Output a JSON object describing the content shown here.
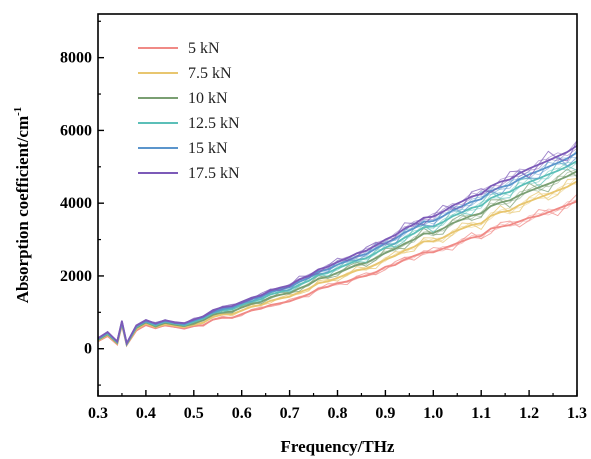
{
  "chart_data": {
    "type": "line",
    "title": "",
    "xlabel": "Frequency/THz",
    "ylabel_base": "Absorption coefficient/cm",
    "ylabel_sup": "-1",
    "xlim": [
      0.3,
      1.3
    ],
    "ylim": [
      -1300,
      9200
    ],
    "x_ticks": [
      0.3,
      0.4,
      0.5,
      0.6,
      0.7,
      0.8,
      0.9,
      1.0,
      1.1,
      1.2,
      1.3
    ],
    "x_tick_labels": [
      "0.3",
      "0.4",
      "0.5",
      "0.6",
      "0.7",
      "0.8",
      "0.9",
      "1.0",
      "1.1",
      "1.2",
      "1.3"
    ],
    "y_ticks": [
      0,
      2000,
      4000,
      6000,
      8000
    ],
    "y_tick_labels": [
      "0",
      "2000",
      "4000",
      "6000",
      "8000"
    ],
    "grid": false,
    "legend_position": "top-left",
    "x": [
      0.3,
      0.32,
      0.34,
      0.35,
      0.36,
      0.38,
      0.4,
      0.42,
      0.44,
      0.46,
      0.48,
      0.5,
      0.52,
      0.54,
      0.56,
      0.58,
      0.6,
      0.62,
      0.64,
      0.66,
      0.68,
      0.7,
      0.72,
      0.74,
      0.76,
      0.78,
      0.8,
      0.82,
      0.84,
      0.86,
      0.88,
      0.9,
      0.92,
      0.94,
      0.96,
      0.98,
      1.0,
      1.02,
      1.04,
      1.06,
      1.08,
      1.1,
      1.12,
      1.14,
      1.16,
      1.18,
      1.2,
      1.22,
      1.24,
      1.26,
      1.28,
      1.3
    ],
    "series": [
      {
        "name": "5 kN",
        "color": "#f08a86",
        "values": [
          200,
          350,
          120,
          650,
          100,
          500,
          650,
          560,
          650,
          600,
          550,
          620,
          650,
          800,
          850,
          850,
          950,
          1050,
          1100,
          1200,
          1250,
          1300,
          1400,
          1500,
          1650,
          1700,
          1800,
          1850,
          1950,
          2000,
          2100,
          2250,
          2300,
          2450,
          2550,
          2650,
          2650,
          2750,
          2850,
          2950,
          3050,
          3100,
          3300,
          3350,
          3400,
          3500,
          3600,
          3650,
          3750,
          3850,
          3950,
          4050
        ]
      },
      {
        "name": "7.5 kN",
        "color": "#e8c66f",
        "values": [
          220,
          380,
          140,
          680,
          110,
          540,
          690,
          590,
          680,
          630,
          590,
          660,
          720,
          870,
          940,
          950,
          1050,
          1150,
          1200,
          1320,
          1380,
          1430,
          1550,
          1650,
          1800,
          1850,
          1950,
          2050,
          2150,
          2200,
          2320,
          2450,
          2550,
          2700,
          2800,
          2950,
          2950,
          3050,
          3200,
          3300,
          3400,
          3450,
          3650,
          3750,
          3800,
          3950,
          4050,
          4150,
          4250,
          4350,
          4450,
          4600
        ]
      },
      {
        "name": "10 kN",
        "color": "#7a9f72",
        "values": [
          240,
          400,
          160,
          700,
          120,
          570,
          720,
          620,
          710,
          660,
          620,
          700,
          780,
          930,
          1000,
          1020,
          1130,
          1230,
          1290,
          1410,
          1480,
          1530,
          1660,
          1760,
          1920,
          1980,
          2090,
          2190,
          2300,
          2360,
          2490,
          2630,
          2740,
          2890,
          3000,
          3160,
          3180,
          3300,
          3450,
          3550,
          3660,
          3720,
          3920,
          4020,
          4080,
          4220,
          4330,
          4430,
          4530,
          4630,
          4740,
          4880
        ]
      },
      {
        "name": "12.5 kN",
        "color": "#5bbfb8",
        "values": [
          260,
          420,
          180,
          720,
          130,
          600,
          750,
          650,
          740,
          690,
          650,
          740,
          830,
          980,
          1060,
          1080,
          1200,
          1300,
          1360,
          1490,
          1560,
          1620,
          1760,
          1860,
          2030,
          2090,
          2210,
          2310,
          2430,
          2490,
          2630,
          2780,
          2890,
          3050,
          3170,
          3340,
          3360,
          3480,
          3640,
          3750,
          3870,
          3930,
          4140,
          4250,
          4310,
          4460,
          4580,
          4680,
          4790,
          4890,
          5010,
          5160
        ]
      },
      {
        "name": "15 kN",
        "color": "#5b95cc",
        "values": [
          270,
          440,
          190,
          740,
          140,
          620,
          770,
          670,
          760,
          710,
          680,
          770,
          860,
          1020,
          1100,
          1130,
          1250,
          1360,
          1420,
          1550,
          1630,
          1690,
          1840,
          1940,
          2120,
          2180,
          2310,
          2410,
          2540,
          2600,
          2750,
          2900,
          3020,
          3190,
          3310,
          3490,
          3510,
          3640,
          3800,
          3920,
          4040,
          4110,
          4330,
          4440,
          4500,
          4660,
          4790,
          4890,
          5000,
          5110,
          5230,
          5390
        ]
      },
      {
        "name": "17.5 kN",
        "color": "#7c5ab8",
        "values": [
          290,
          460,
          200,
          760,
          150,
          640,
          790,
          690,
          780,
          730,
          700,
          800,
          890,
          1060,
          1140,
          1170,
          1290,
          1400,
          1460,
          1600,
          1680,
          1740,
          1900,
          2000,
          2180,
          2250,
          2380,
          2490,
          2620,
          2690,
          2840,
          3000,
          3120,
          3300,
          3420,
          3600,
          3630,
          3760,
          3930,
          4050,
          4180,
          4250,
          4470,
          4590,
          4650,
          4820,
          4950,
          5060,
          5170,
          5290,
          5410,
          5580
        ]
      }
    ]
  }
}
